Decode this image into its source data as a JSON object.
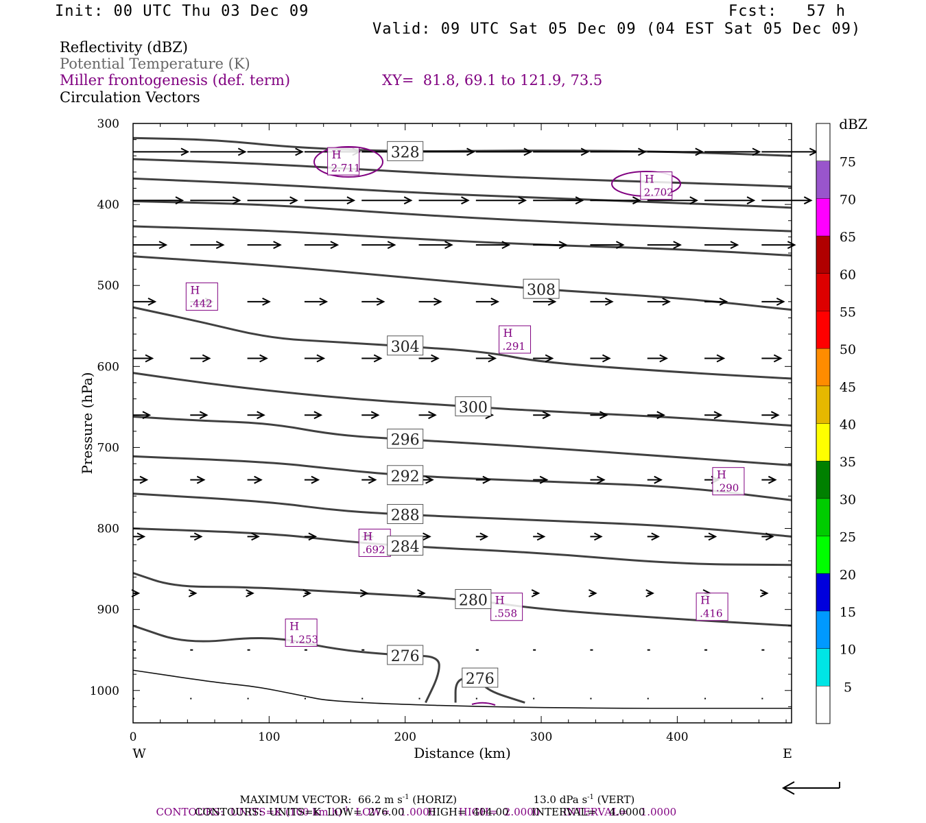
{
  "header": {
    "init": "Init: 00 UTC Thu 03 Dec 09",
    "fcst": "Fcst:   57 h",
    "valid": "Valid: 09 UTC Sat 05 Dec 09 (04 EST Sat 05 Dec 09)"
  },
  "legend": {
    "line1": "Reflectivity (dBZ)",
    "line2": "Potential Temperature (K)",
    "line3": "Miller frontogenesis (def. term)",
    "xy": "XY=  81.8, 69.1 to 121.9, 73.5",
    "line4": "Circulation Vectors"
  },
  "footer": {
    "max_vector": "MAXIMUM VECTOR:  66.2 m s",
    "horiz": " (HORIZ)",
    "vert_val": "13.0 dPa s",
    "vert": " (VERT)",
    "exp": "-1",
    "contours_purple": "CONTOURS:  UNITS=K (100 km h)",
    "contours_purple_rest": "  LOW=   1.0000       HIGH=  2.0000       INTERVAL=    1.0000",
    "contours_black": "CONTOURS:  UNITS=K  LOW=  276.00       HIGH=  404.00       INTERVAL=    4.0000"
  },
  "colors": {
    "theta": "#404040",
    "fronto": "#800080",
    "vector": "#000000"
  },
  "chart_data": {
    "type": "line",
    "xlabel": "Distance (km)",
    "ylabel": "Pressure (hPa)",
    "xlim": [
      0,
      484
    ],
    "ylim": [
      1040,
      300
    ],
    "y_reversed": true,
    "x_ticks": [
      0,
      100,
      200,
      300,
      400
    ],
    "y_ticks": [
      300,
      400,
      500,
      600,
      700,
      800,
      900,
      1000
    ],
    "left_label": "W",
    "right_label": "E",
    "grid": false,
    "theta_contours": [
      {
        "level": "328",
        "points": [
          [
            0,
            318
          ],
          [
            60,
            320
          ],
          [
            120,
            330
          ],
          [
            200,
            335
          ],
          [
            300,
            333
          ],
          [
            400,
            335
          ],
          [
            484,
            340
          ]
        ]
      },
      {
        "level": "",
        "points": [
          [
            0,
            344
          ],
          [
            100,
            350
          ],
          [
            200,
            360
          ],
          [
            300,
            368
          ],
          [
            400,
            373
          ],
          [
            484,
            378
          ]
        ]
      },
      {
        "level": "",
        "points": [
          [
            0,
            368
          ],
          [
            100,
            375
          ],
          [
            200,
            385
          ],
          [
            300,
            392
          ],
          [
            400,
            398
          ],
          [
            484,
            404
          ]
        ]
      },
      {
        "level": "",
        "points": [
          [
            0,
            396
          ],
          [
            100,
            400
          ],
          [
            200,
            412
          ],
          [
            300,
            421
          ],
          [
            400,
            428
          ],
          [
            484,
            433
          ]
        ]
      },
      {
        "level": "",
        "points": [
          [
            0,
            427
          ],
          [
            100,
            432
          ],
          [
            200,
            442
          ],
          [
            300,
            450
          ],
          [
            400,
            455
          ],
          [
            484,
            463
          ]
        ]
      },
      {
        "level": "308",
        "points": [
          [
            0,
            464
          ],
          [
            100,
            475
          ],
          [
            200,
            490
          ],
          [
            300,
            505
          ],
          [
            400,
            515
          ],
          [
            484,
            530
          ]
        ]
      },
      {
        "level": "304",
        "points": [
          [
            0,
            527
          ],
          [
            50,
            545
          ],
          [
            100,
            565
          ],
          [
            150,
            570
          ],
          [
            200,
            575
          ],
          [
            260,
            582
          ],
          [
            300,
            595
          ],
          [
            400,
            607
          ],
          [
            484,
            615
          ]
        ]
      },
      {
        "level": "300",
        "points": [
          [
            0,
            608
          ],
          [
            50,
            620
          ],
          [
            100,
            630
          ],
          [
            160,
            640
          ],
          [
            250,
            650
          ],
          [
            300,
            655
          ],
          [
            400,
            663
          ],
          [
            484,
            673
          ]
        ]
      },
      {
        "level": "296",
        "points": [
          [
            0,
            662
          ],
          [
            50,
            667
          ],
          [
            100,
            670
          ],
          [
            150,
            685
          ],
          [
            200,
            690
          ],
          [
            300,
            700
          ],
          [
            400,
            712
          ],
          [
            484,
            722
          ]
        ]
      },
      {
        "level": "292",
        "points": [
          [
            0,
            711
          ],
          [
            100,
            718
          ],
          [
            150,
            727
          ],
          [
            200,
            735
          ],
          [
            300,
            742
          ],
          [
            400,
            748
          ],
          [
            484,
            765
          ]
        ]
      },
      {
        "level": "288",
        "points": [
          [
            0,
            757
          ],
          [
            100,
            767
          ],
          [
            150,
            778
          ],
          [
            200,
            783
          ],
          [
            300,
            790
          ],
          [
            400,
            797
          ],
          [
            484,
            810
          ]
        ]
      },
      {
        "level": "284",
        "points": [
          [
            0,
            800
          ],
          [
            100,
            806
          ],
          [
            150,
            815
          ],
          [
            200,
            822
          ],
          [
            300,
            830
          ],
          [
            400,
            844
          ],
          [
            484,
            845
          ]
        ]
      },
      {
        "level": "280",
        "points": [
          [
            0,
            855
          ],
          [
            30,
            872
          ],
          [
            80,
            872
          ],
          [
            150,
            878
          ],
          [
            250,
            888
          ],
          [
            300,
            900
          ],
          [
            400,
            912
          ],
          [
            484,
            920
          ]
        ]
      },
      {
        "level": "276",
        "points": [
          [
            0,
            920
          ],
          [
            40,
            943
          ],
          [
            100,
            932
          ],
          [
            150,
            950
          ],
          [
            200,
            957
          ],
          [
            225,
            958
          ],
          [
            225,
            980
          ],
          [
            215,
            1015
          ]
        ]
      },
      {
        "level": "276",
        "points": [
          [
            237,
            1015
          ],
          [
            237,
            990
          ],
          [
            245,
            983
          ],
          [
            255,
            985
          ],
          [
            260,
            1000
          ],
          [
            288,
            1015
          ]
        ]
      },
      {
        "level": "",
        "points": [
          [
            0,
            975
          ],
          [
            60,
            990
          ],
          [
            90,
            995
          ],
          [
            120,
            1005
          ],
          [
            150,
            1015
          ],
          [
            300,
            1022
          ],
          [
            484,
            1022
          ]
        ]
      }
    ],
    "fronto_highs": [
      {
        "label": "H",
        "value": "2.711",
        "x": 145,
        "y": 345
      },
      {
        "label": "H",
        "value": "2.702",
        "x": 375,
        "y": 375
      },
      {
        "label": "H",
        "value": ".442",
        "x": 41,
        "y": 512
      },
      {
        "label": "H",
        "value": ".291",
        "x": 271,
        "y": 565
      },
      {
        "label": "H",
        "value": ".290",
        "x": 428,
        "y": 740
      },
      {
        "label": "H",
        "value": ".692",
        "x": 168,
        "y": 816
      },
      {
        "label": "H",
        "value": ".558",
        "x": 265,
        "y": 895
      },
      {
        "label": "H",
        "value": ".416",
        "x": 416,
        "y": 895
      },
      {
        "label": "H",
        "value": "1.253",
        "x": 114,
        "y": 927
      }
    ],
    "colorbar": {
      "label": "dBZ",
      "levels": [
        "5",
        "10",
        "15",
        "20",
        "25",
        "30",
        "35",
        "40",
        "45",
        "50",
        "55",
        "60",
        "65",
        "70",
        "75"
      ],
      "colors": [
        "#ffffff",
        "#00e5e5",
        "#0099ff",
        "#0000dd",
        "#00ff00",
        "#00cc00",
        "#008000",
        "#ffff00",
        "#e6b800",
        "#ff8c00",
        "#ff0000",
        "#dd0000",
        "#b00000",
        "#ff00ff",
        "#9955cc",
        "#ffffff"
      ]
    },
    "max_vector_ms": 66.2,
    "vectors": [
      {
        "p": 335,
        "x": [
          0,
          42,
          84,
          126,
          168,
          210,
          252,
          294,
          336,
          378,
          420,
          462
        ],
        "u": 1.0
      },
      {
        "p": 395,
        "x": [
          0,
          42,
          84,
          126,
          168,
          210,
          252,
          294,
          336,
          378,
          420,
          462
        ],
        "u": 0.9
      },
      {
        "p": 450,
        "x": [
          0,
          42,
          84,
          126,
          168,
          210,
          252,
          294,
          336,
          378,
          420,
          462
        ],
        "u": 0.6
      },
      {
        "p": 520,
        "x": [
          0,
          42,
          84,
          126,
          168,
          210,
          252,
          294,
          336,
          378,
          420,
          462
        ],
        "u": 0.4
      },
      {
        "p": 590,
        "x": [
          0,
          42,
          84,
          126,
          168,
          210,
          252,
          294,
          336,
          378,
          420,
          462
        ],
        "u": 0.35
      },
      {
        "p": 660,
        "x": [
          0,
          42,
          84,
          126,
          168,
          210,
          252,
          294,
          336,
          378,
          420,
          462
        ],
        "u": 0.3
      },
      {
        "p": 740,
        "x": [
          0,
          42,
          84,
          126,
          168,
          210,
          252,
          294,
          336,
          378,
          420,
          462
        ],
        "u": 0.25
      },
      {
        "p": 810,
        "x": [
          0,
          42,
          84,
          126,
          168,
          210,
          252,
          294,
          336,
          378,
          420,
          462
        ],
        "u": 0.2
      },
      {
        "p": 880,
        "x": [
          0,
          42,
          84,
          126,
          168,
          210,
          252,
          294,
          336,
          378,
          420,
          462
        ],
        "u": 0.1
      },
      {
        "p": 950,
        "x": [
          0,
          42,
          84,
          126,
          168,
          210,
          252,
          294,
          336,
          378,
          420,
          462
        ],
        "u": 0.05
      },
      {
        "p": 1010,
        "x": [
          0,
          42,
          84,
          126,
          168,
          210,
          252,
          294,
          336,
          378,
          420,
          462
        ],
        "u": 0.0
      }
    ]
  }
}
